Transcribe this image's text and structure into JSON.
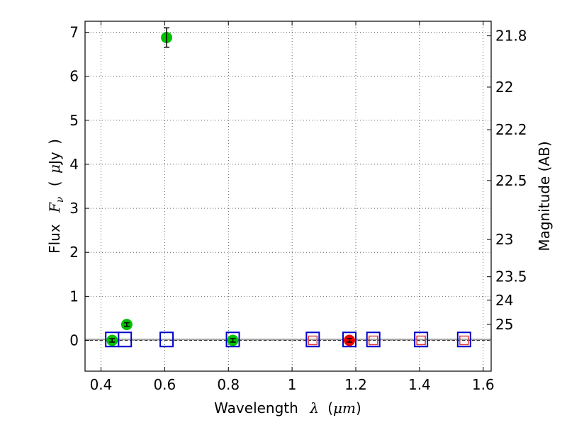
{
  "chart_data": {
    "type": "scatter",
    "title": "",
    "xlabel": {
      "prefix": "Wavelength",
      "symbol": "λ",
      "paren_open": "(",
      "mu": "μ",
      "unit": "m",
      "paren_close": ")"
    },
    "ylabel": {
      "prefix": "Flux",
      "symbol": "F",
      "subscript": "ν",
      "paren_open": "(",
      "mu": "μ",
      "unit": "Jy",
      "paren_close": ")"
    },
    "y2label": "Magnitude (AB)",
    "xlim": [
      0.35,
      1.625
    ],
    "ylim": [
      -0.7,
      7.25
    ],
    "grid": true,
    "xticks": [
      {
        "value": 0.4,
        "label": "0.4"
      },
      {
        "value": 0.6,
        "label": "0.6"
      },
      {
        "value": 0.8,
        "label": "0.8"
      },
      {
        "value": 1.0,
        "label": "1"
      },
      {
        "value": 1.2,
        "label": "1.2"
      },
      {
        "value": 1.4,
        "label": "1.4"
      },
      {
        "value": 1.6,
        "label": "1.6"
      }
    ],
    "yticks": [
      {
        "value": 0,
        "label": "0"
      },
      {
        "value": 1,
        "label": "1"
      },
      {
        "value": 2,
        "label": "2"
      },
      {
        "value": 3,
        "label": "3"
      },
      {
        "value": 4,
        "label": "4"
      },
      {
        "value": 5,
        "label": "5"
      },
      {
        "value": 6,
        "label": "6"
      },
      {
        "value": 7,
        "label": "7"
      }
    ],
    "y2ticks": [
      {
        "mag": 21.8,
        "label": "21.8"
      },
      {
        "mag": 22.0,
        "label": "22"
      },
      {
        "mag": 22.2,
        "label": "22.2"
      },
      {
        "mag": 22.5,
        "label": "22.5"
      },
      {
        "mag": 23.0,
        "label": "23"
      },
      {
        "mag": 23.5,
        "label": "23.5"
      },
      {
        "mag": 24.0,
        "label": "24"
      },
      {
        "mag": 25.0,
        "label": "25"
      }
    ],
    "reference_lines": [
      {
        "name": "zero-line",
        "y": 0.0,
        "color": "#000000",
        "style": "dashed"
      },
      {
        "name": "model-line",
        "y": 0.02,
        "color": "#a0a0a0",
        "style": "solid"
      }
    ],
    "series": [
      {
        "name": "model-photometry",
        "marker": "square",
        "color": "#0000cc",
        "points": [
          {
            "x": 0.435,
            "y": 0.02
          },
          {
            "x": 0.475,
            "y": 0.02
          },
          {
            "x": 0.606,
            "y": 0.02
          },
          {
            "x": 0.814,
            "y": 0.02
          },
          {
            "x": 1.065,
            "y": 0.02
          },
          {
            "x": 1.18,
            "y": 0.02
          },
          {
            "x": 1.255,
            "y": 0.02
          },
          {
            "x": 1.405,
            "y": 0.02
          },
          {
            "x": 1.54,
            "y": 0.02
          }
        ]
      },
      {
        "name": "model-photometry-ir",
        "marker": "small-square",
        "color": "#e04040",
        "points": [
          {
            "x": 1.065,
            "y": 0.0
          },
          {
            "x": 1.255,
            "y": 0.0
          },
          {
            "x": 1.405,
            "y": 0.0
          },
          {
            "x": 1.54,
            "y": 0.0
          }
        ]
      },
      {
        "name": "observed-optical",
        "marker": "circle",
        "color": "#00c000",
        "points": [
          {
            "x": 0.435,
            "y": 0.0,
            "err": 0.04
          },
          {
            "x": 0.481,
            "y": 0.36,
            "err": 0.04
          },
          {
            "x": 0.606,
            "y": 6.88,
            "err": 0.22
          },
          {
            "x": 0.814,
            "y": 0.0,
            "err": 0.04
          }
        ]
      },
      {
        "name": "observed-ir",
        "marker": "circle",
        "color": "#ee0000",
        "points": [
          {
            "x": 1.18,
            "y": 0.0,
            "err": 0.04
          }
        ]
      }
    ]
  }
}
